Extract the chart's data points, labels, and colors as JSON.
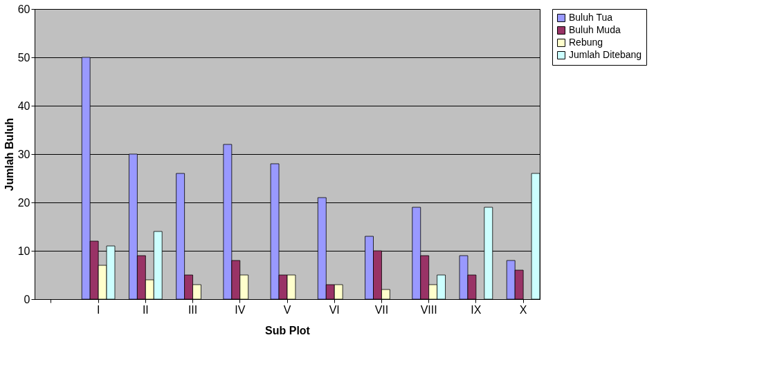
{
  "chart_data": {
    "type": "bar",
    "xlabel": "Sub Plot",
    "ylabel": "Jumlah Buluh",
    "categories": [
      null,
      "I",
      "II",
      "III",
      "IV",
      "V",
      "VI",
      "VII",
      "VIII",
      "IX",
      "X"
    ],
    "series": [
      {
        "name": "Buluh Tua",
        "color": "#9999ff",
        "values": [
          null,
          50,
          30,
          26,
          32,
          28,
          21,
          13,
          19,
          9,
          8
        ]
      },
      {
        "name": "Buluh Muda",
        "color": "#993366",
        "values": [
          null,
          12,
          9,
          5,
          8,
          5,
          3,
          10,
          9,
          5,
          6
        ]
      },
      {
        "name": "Rebung",
        "color": "#ffffcc",
        "values": [
          null,
          7,
          4,
          3,
          5,
          5,
          3,
          2,
          3,
          null,
          null
        ]
      },
      {
        "name": "Jumlah Ditebang",
        "color": "#ccffff",
        "values": [
          null,
          11,
          14,
          null,
          null,
          null,
          null,
          null,
          5,
          19,
          26
        ]
      }
    ],
    "ylim": [
      0,
      60
    ],
    "yticks": [
      0,
      10,
      20,
      30,
      40,
      50,
      60
    ],
    "grid": "y",
    "legend": "right"
  }
}
